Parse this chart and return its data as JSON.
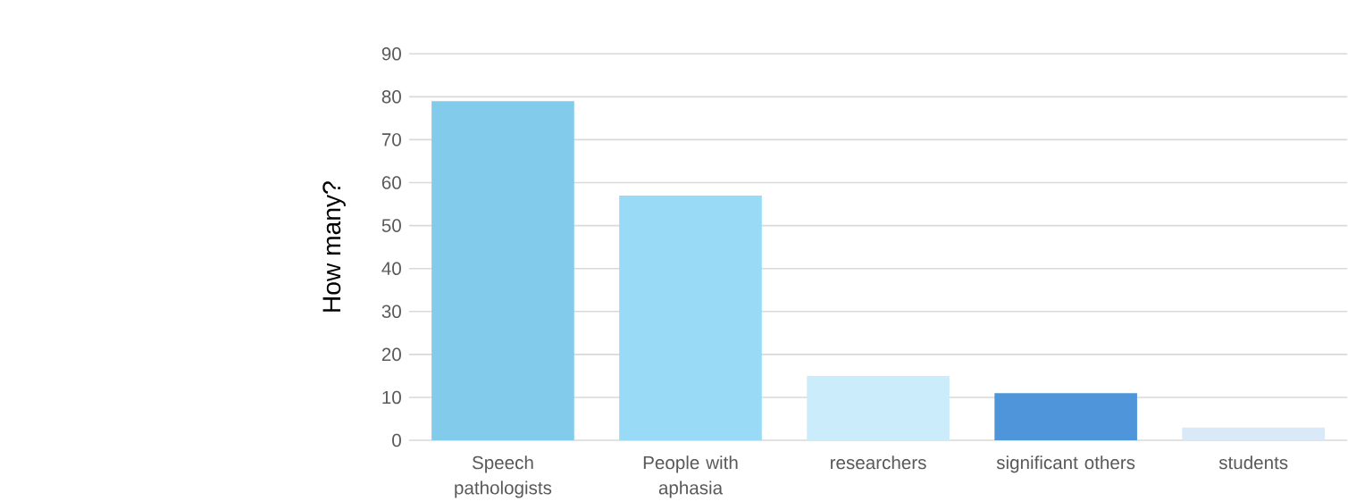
{
  "chart_data": {
    "type": "bar",
    "ylabel": "How many?",
    "categories": [
      "Speech pathologists",
      "People with aphasia",
      "researchers",
      "significant others",
      "students"
    ],
    "values": [
      79,
      57,
      15,
      11,
      3
    ],
    "colors": [
      "#83cbeb",
      "#99dbf6",
      "#cbedfb",
      "#4e95d9",
      "#dae9f8"
    ],
    "ylim": [
      0,
      90
    ],
    "yticks": [
      0,
      10,
      20,
      30,
      40,
      50,
      60,
      70,
      80,
      90
    ],
    "grid": "y"
  }
}
